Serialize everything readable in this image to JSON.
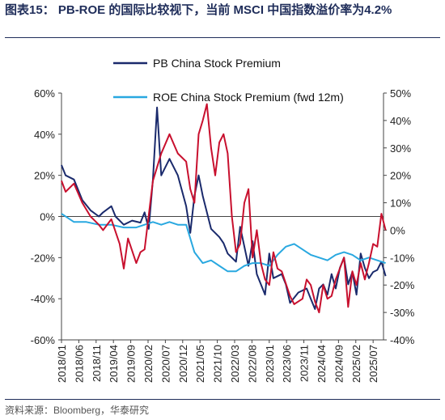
{
  "figure_title": "图表15： PB-ROE 的国际比较视下，当前 MSCI 中国指数溢价率为4.2%",
  "source": "资料来源：Bloomberg，华泰研究",
  "colors": {
    "pb": "#1a2a6c",
    "roe": "#29a8e0",
    "red": "#c8102e",
    "title": "#1f2d5a"
  },
  "chart_data": {
    "type": "line",
    "legend_placement": "top-center",
    "grid": false,
    "x_tick_labels": [
      "2018/01",
      "2018/06",
      "2018/11",
      "2019/04",
      "2019/09",
      "2020/02",
      "2020/07",
      "2020/12",
      "2021/05",
      "2021/10",
      "2022/03",
      "2022/08",
      "2023/01",
      "2023/06",
      "2023/11",
      "2024/04",
      "2024/09",
      "2025/02",
      "2025/07"
    ],
    "x_range": [
      "2018-01",
      "2025-10"
    ],
    "left_axis": {
      "ylim": [
        -60,
        60
      ],
      "ticks": [
        "60%",
        "40%",
        "20%",
        "0%",
        "-20%",
        "-40%",
        "-60%"
      ],
      "tick_values": [
        60,
        40,
        20,
        0,
        -20,
        -40,
        -60
      ]
    },
    "right_axis": {
      "ylim": [
        -40,
        50
      ],
      "ticks": [
        "50%",
        "40%",
        "30%",
        "20%",
        "10%",
        "0%",
        "-10%",
        "-20%",
        "-30%",
        "-40%"
      ],
      "tick_values": [
        50,
        40,
        30,
        20,
        10,
        0,
        -10,
        -20,
        -30,
        -40
      ]
    },
    "series": [
      {
        "name": "PB China Stock Premium",
        "axis": "left",
        "color": "#1a2a6c",
        "legend": true,
        "x": [
          2018.0,
          2018.1,
          2018.3,
          2018.5,
          2018.7,
          2018.9,
          2019.0,
          2019.2,
          2019.3,
          2019.5,
          2019.7,
          2019.9,
          2020.0,
          2020.1,
          2020.2,
          2020.3,
          2020.4,
          2020.6,
          2020.8,
          2021.0,
          2021.1,
          2021.2,
          2021.3,
          2021.4,
          2021.6,
          2021.8,
          2021.9,
          2022.0,
          2022.2,
          2022.3,
          2022.5,
          2022.6,
          2022.7,
          2022.9,
          2023.0,
          2023.1,
          2023.3,
          2023.4,
          2023.5,
          2023.7,
          2023.9,
          2024.0,
          2024.1,
          2024.2,
          2024.3,
          2024.4,
          2024.5,
          2024.6,
          2024.7,
          2024.8,
          2024.9,
          2025.0,
          2025.1,
          2025.2,
          2025.3,
          2025.4,
          2025.5,
          2025.6,
          2025.7,
          2025.8
        ],
        "y": [
          25,
          20,
          18,
          8,
          3,
          0,
          2,
          5,
          0,
          -4,
          -2,
          -3,
          2,
          -6,
          18,
          53,
          20,
          28,
          20,
          5,
          -8,
          10,
          20,
          10,
          -6,
          -10,
          -13,
          -18,
          -22,
          -5,
          -24,
          -12,
          -28,
          -38,
          -18,
          -30,
          -28,
          -33,
          -42,
          -37,
          -35,
          -40,
          -45,
          -35,
          -33,
          -38,
          -28,
          -35,
          -25,
          -20,
          -33,
          -27,
          -38,
          -18,
          -25,
          -30,
          -27,
          -26,
          -22,
          -29
        ]
      },
      {
        "name": "ROE China Stock Premium (fwd 12m)",
        "axis": "right",
        "color": "#29a8e0",
        "legend": true,
        "x": [
          2018.0,
          2018.3,
          2018.6,
          2018.9,
          2019.2,
          2019.5,
          2019.8,
          2020.0,
          2020.2,
          2020.4,
          2020.6,
          2020.8,
          2021.0,
          2021.2,
          2021.4,
          2021.6,
          2021.8,
          2022.0,
          2022.2,
          2022.4,
          2022.6,
          2022.8,
          2023.0,
          2023.2,
          2023.4,
          2023.6,
          2023.8,
          2024.0,
          2024.2,
          2024.4,
          2024.6,
          2024.8,
          2025.0,
          2025.2,
          2025.4,
          2025.6,
          2025.8
        ],
        "y": [
          6,
          3,
          3,
          2,
          2,
          1,
          1,
          2,
          3,
          2,
          3,
          2,
          2,
          -8,
          -12,
          -11,
          -13,
          -15,
          -15,
          -13,
          -12,
          -12,
          -13,
          -9,
          -6,
          -5,
          -7,
          -9,
          -10,
          -11,
          -9,
          -8,
          -9,
          -11,
          -10,
          -11,
          -12
        ]
      },
      {
        "name": "",
        "axis": "right",
        "color": "#c8102e",
        "legend": false,
        "x": [
          2018.0,
          2018.1,
          2018.3,
          2018.5,
          2018.7,
          2018.9,
          2019.0,
          2019.2,
          2019.4,
          2019.5,
          2019.6,
          2019.8,
          2019.9,
          2020.0,
          2020.2,
          2020.4,
          2020.6,
          2020.8,
          2021.0,
          2021.1,
          2021.2,
          2021.3,
          2021.4,
          2021.5,
          2021.6,
          2021.7,
          2021.8,
          2021.9,
          2022.0,
          2022.1,
          2022.2,
          2022.3,
          2022.4,
          2022.5,
          2022.6,
          2022.7,
          2022.8,
          2022.9,
          2023.0,
          2023.1,
          2023.2,
          2023.3,
          2023.5,
          2023.6,
          2023.8,
          2023.9,
          2024.0,
          2024.1,
          2024.2,
          2024.3,
          2024.4,
          2024.5,
          2024.6,
          2024.8,
          2024.9,
          2025.0,
          2025.1,
          2025.2,
          2025.3,
          2025.4,
          2025.5,
          2025.6,
          2025.7,
          2025.8
        ],
        "y": [
          18,
          14,
          17,
          10,
          5,
          2,
          0,
          4,
          -5,
          -14,
          -3,
          -12,
          -8,
          -7,
          18,
          28,
          35,
          28,
          25,
          15,
          10,
          35,
          40,
          46,
          30,
          20,
          32,
          35,
          28,
          5,
          -8,
          -5,
          10,
          15,
          -10,
          0,
          -12,
          -18,
          -20,
          -8,
          -14,
          -15,
          -24,
          -27,
          -25,
          -18,
          -20,
          -26,
          -30,
          -20,
          -25,
          -24,
          -18,
          -10,
          -28,
          -15,
          -20,
          -12,
          -18,
          -12,
          -5,
          -6,
          6,
          0
        ]
      }
    ]
  }
}
